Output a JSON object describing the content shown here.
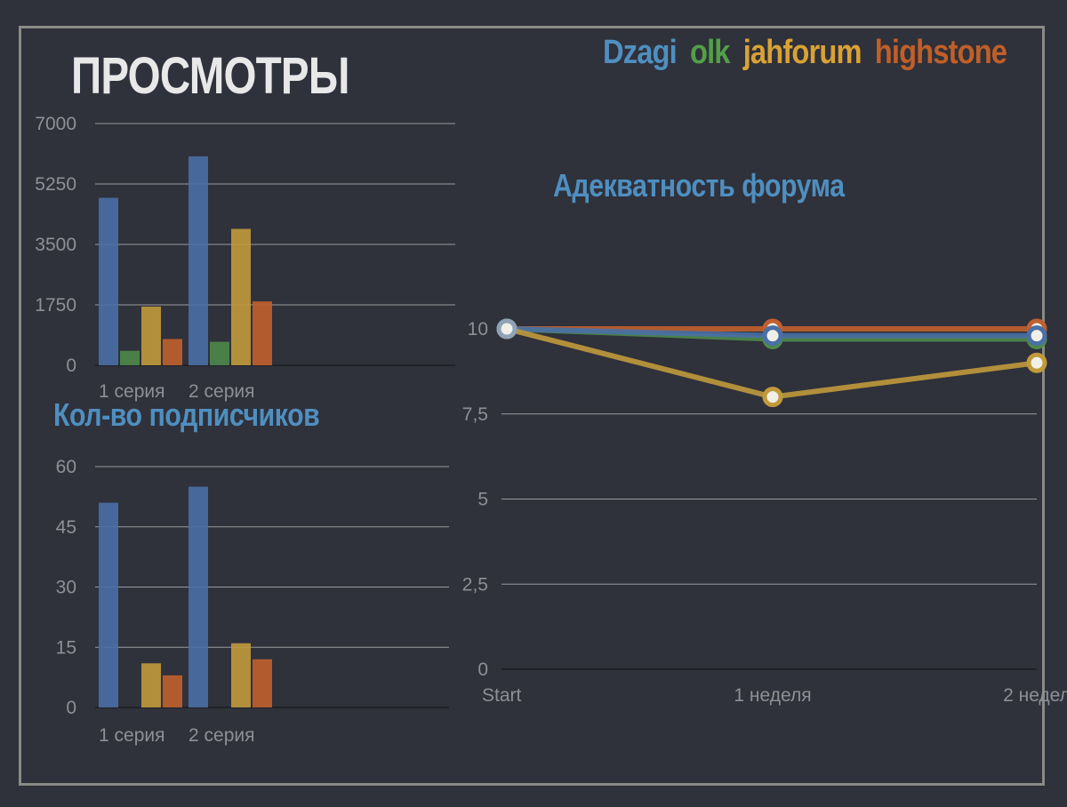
{
  "colors": {
    "background": "#2f313b",
    "frame": "#8a8b85",
    "title": "#e8e8e8",
    "subtitle": "#4f8fc0",
    "axis_text": "#8f9096",
    "grid": "#c8c8c8",
    "series": [
      "#4a6fa5",
      "#4e8a4a",
      "#c19a3c",
      "#c1602e"
    ],
    "legend": [
      "#4f8fc0",
      "#52a046",
      "#d9a233",
      "#c05f28"
    ]
  },
  "legend": {
    "items": [
      "Dzagi",
      "olk",
      "jahforum",
      "highstone"
    ]
  },
  "chart_data": [
    {
      "type": "bar",
      "title": "ПРОСМОТРЫ",
      "categories": [
        "1 серия",
        "2 серия"
      ],
      "yticks": [
        "7000",
        "5250",
        "3500",
        "1750",
        "0"
      ],
      "ylim": [
        0,
        7000
      ],
      "grid": true,
      "series": [
        {
          "name": "Dzagi",
          "values": [
            4850,
            6050
          ]
        },
        {
          "name": "olk",
          "values": [
            420,
            680
          ]
        },
        {
          "name": "jahforum",
          "values": [
            1700,
            3950
          ]
        },
        {
          "name": "highstone",
          "values": [
            760,
            1850
          ]
        }
      ]
    },
    {
      "type": "bar",
      "title": "Кол-во подписчиков",
      "categories": [
        "1 серия",
        "2 серия"
      ],
      "yticks": [
        "60",
        "45",
        "30",
        "15",
        "0"
      ],
      "ylim": [
        0,
        60
      ],
      "grid": true,
      "series": [
        {
          "name": "Dzagi",
          "values": [
            51,
            55
          ]
        },
        {
          "name": "olk",
          "values": [
            0,
            0
          ]
        },
        {
          "name": "jahforum",
          "values": [
            11,
            16
          ]
        },
        {
          "name": "highstone",
          "values": [
            8,
            12
          ]
        }
      ]
    },
    {
      "type": "line",
      "title": "Адекватность форума",
      "categories": [
        "Start",
        "1 неделя",
        "2 недел"
      ],
      "yticks": [
        "10",
        "7,5",
        "5",
        "2,5",
        "0"
      ],
      "ylim": [
        0,
        10
      ],
      "grid": true,
      "series": [
        {
          "name": "Dzagi",
          "values": [
            10,
            9.8,
            9.8
          ]
        },
        {
          "name": "olk",
          "values": [
            10,
            9.7,
            9.7
          ]
        },
        {
          "name": "jahforum",
          "values": [
            10,
            8,
            9
          ]
        },
        {
          "name": "highstone",
          "values": [
            10,
            10,
            10
          ]
        }
      ]
    }
  ]
}
